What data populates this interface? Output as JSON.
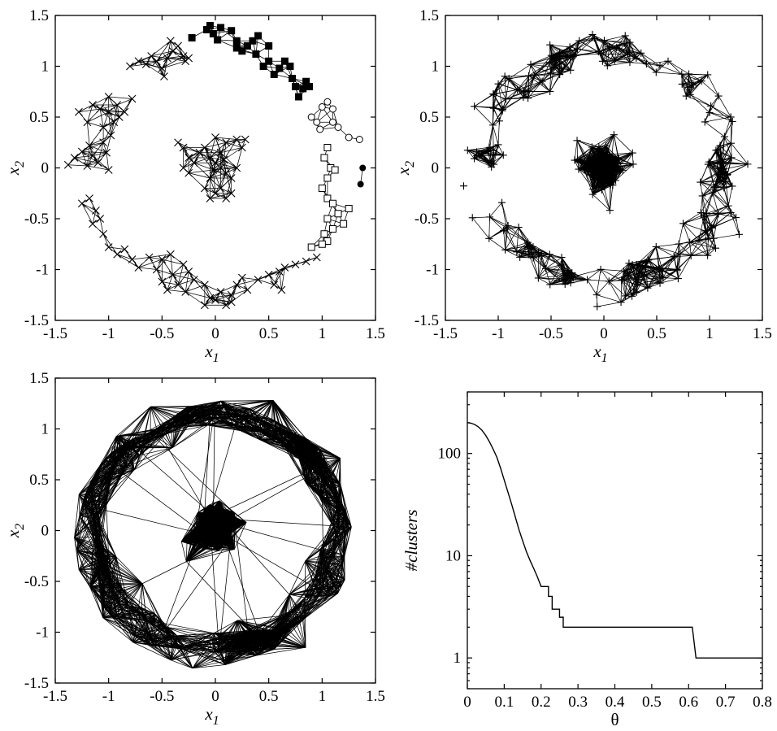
{
  "chart_data": [
    {
      "type": "scatter",
      "panel": "top-left",
      "description_of_marks": "points connected by edges; clusters marked with different symbols",
      "xlabel": "x1",
      "ylabel": "x2",
      "xlim": [
        -1.5,
        1.5
      ],
      "ylim": [
        -1.5,
        1.5
      ],
      "xticks": [
        "-1.5",
        "-1",
        "-0.5",
        "0",
        "0.5",
        "1",
        "1.5"
      ],
      "yticks": [
        "-1.5",
        "-1",
        "-0.5",
        "0",
        "0.5",
        "1",
        "1.5"
      ],
      "grid": false,
      "series": [
        {
          "marker": "cross",
          "points": [
            [
              -1.38,
              0.03
            ],
            [
              -1.32,
              0.1
            ],
            [
              -1.25,
              0.16
            ],
            [
              -1.2,
              0.02
            ],
            [
              -1.18,
              0.22
            ],
            [
              -1.15,
              0.12
            ],
            [
              -1.1,
              0.05
            ],
            [
              -1.05,
              0.25
            ],
            [
              -1.02,
              0.15
            ],
            [
              -0.98,
              0.32
            ],
            [
              -0.95,
              0.45
            ],
            [
              -1.0,
              -0.02
            ],
            [
              -1.05,
              0.4
            ],
            [
              -1.08,
              0.58
            ],
            [
              -1.0,
              0.7
            ],
            [
              -0.92,
              0.62
            ],
            [
              -0.85,
              0.55
            ],
            [
              -0.78,
              0.68
            ],
            [
              -0.9,
              0.5
            ],
            [
              -1.0,
              0.55
            ],
            [
              -1.2,
              0.45
            ],
            [
              -1.28,
              0.55
            ],
            [
              -1.15,
              0.62
            ],
            [
              -1.25,
              -0.35
            ],
            [
              -1.18,
              -0.3
            ],
            [
              -1.12,
              -0.42
            ],
            [
              -1.08,
              -0.5
            ],
            [
              -1.15,
              -0.55
            ],
            [
              -1.05,
              -0.65
            ],
            [
              -1.0,
              -0.78
            ],
            [
              -0.92,
              -0.85
            ],
            [
              -0.85,
              -0.8
            ],
            [
              -0.78,
              -0.9
            ],
            [
              -0.72,
              -0.98
            ],
            [
              -0.62,
              -0.88
            ],
            [
              -0.55,
              -1.0
            ],
            [
              -0.5,
              -1.12
            ],
            [
              -0.45,
              -1.2
            ],
            [
              -0.4,
              -1.05
            ],
            [
              -0.35,
              -1.15
            ],
            [
              -0.3,
              -0.95
            ],
            [
              -0.25,
              -1.02
            ],
            [
              -0.28,
              -1.22
            ],
            [
              -0.5,
              -0.9
            ],
            [
              -0.42,
              -0.85
            ],
            [
              -0.2,
              -1.1
            ],
            [
              -0.1,
              -1.15
            ],
            [
              -0.05,
              -1.28
            ],
            [
              0.0,
              -1.3
            ],
            [
              0.05,
              -1.22
            ],
            [
              0.1,
              -1.35
            ],
            [
              0.15,
              -1.25
            ],
            [
              0.2,
              -1.15
            ],
            [
              0.25,
              -1.08
            ],
            [
              0.15,
              -1.32
            ],
            [
              -0.1,
              -1.35
            ],
            [
              0.3,
              -1.2
            ],
            [
              0.4,
              -1.1
            ],
            [
              0.5,
              -1.05
            ],
            [
              0.55,
              -1.15
            ],
            [
              0.6,
              -1.02
            ],
            [
              0.65,
              -0.98
            ],
            [
              0.75,
              -0.95
            ],
            [
              0.85,
              -0.92
            ],
            [
              0.95,
              -0.88
            ],
            [
              0.62,
              -1.2
            ],
            [
              -0.8,
              1.0
            ],
            [
              -0.72,
              1.05
            ],
            [
              -0.65,
              1.02
            ],
            [
              -0.6,
              1.1
            ],
            [
              -0.55,
              1.05
            ],
            [
              -0.5,
              0.98
            ],
            [
              -0.45,
              1.08
            ],
            [
              -0.4,
              1.15
            ],
            [
              -0.35,
              1.2
            ],
            [
              -0.3,
              1.1
            ],
            [
              -0.28,
              1.05
            ],
            [
              -0.42,
              1.25
            ],
            [
              -0.25,
              1.08
            ],
            [
              -0.48,
              0.9
            ],
            [
              -0.35,
              0.25
            ],
            [
              -0.3,
              0.2
            ],
            [
              -0.25,
              0.1
            ],
            [
              -0.2,
              0.05
            ],
            [
              -0.15,
              0.15
            ],
            [
              -0.1,
              0.2
            ],
            [
              -0.05,
              0.1
            ],
            [
              0.0,
              0.05
            ],
            [
              0.05,
              0.0
            ],
            [
              0.1,
              -0.05
            ],
            [
              0.15,
              -0.1
            ],
            [
              0.2,
              0.0
            ],
            [
              0.25,
              0.2
            ],
            [
              0.28,
              0.28
            ],
            [
              0.2,
              0.28
            ],
            [
              0.1,
              0.25
            ],
            [
              0.0,
              0.3
            ],
            [
              -0.05,
              -0.1
            ],
            [
              -0.1,
              -0.2
            ],
            [
              -0.05,
              -0.3
            ],
            [
              0.0,
              -0.25
            ],
            [
              0.05,
              -0.2
            ],
            [
              0.15,
              -0.25
            ],
            [
              0.1,
              -0.3
            ],
            [
              -0.3,
              0.0
            ],
            [
              -0.25,
              -0.05
            ],
            [
              0.05,
              0.15
            ],
            [
              -0.02,
              -0.02
            ],
            [
              0.08,
              0.08
            ]
          ]
        },
        {
          "marker": "square-filled",
          "points": [
            [
              -0.22,
              1.28
            ],
            [
              -0.08,
              1.36
            ],
            [
              -0.05,
              1.4
            ],
            [
              -0.02,
              1.32
            ],
            [
              0.02,
              1.26
            ],
            [
              0.05,
              1.38
            ],
            [
              0.15,
              1.35
            ],
            [
              0.2,
              1.25
            ],
            [
              0.25,
              1.15
            ],
            [
              0.3,
              1.2
            ],
            [
              0.35,
              1.25
            ],
            [
              0.4,
              1.3
            ],
            [
              0.38,
              1.12
            ],
            [
              0.45,
              1.0
            ],
            [
              0.5,
              1.05
            ],
            [
              0.55,
              0.92
            ],
            [
              0.6,
              0.98
            ],
            [
              0.65,
              1.05
            ],
            [
              0.7,
              1.0
            ],
            [
              0.72,
              0.88
            ],
            [
              0.75,
              0.8
            ],
            [
              0.78,
              0.7
            ],
            [
              0.82,
              0.78
            ],
            [
              0.85,
              0.85
            ],
            [
              0.88,
              0.8
            ],
            [
              0.2,
              1.18
            ],
            [
              0.5,
              1.2
            ]
          ]
        },
        {
          "marker": "circle-open",
          "points": [
            [
              0.9,
              0.5
            ],
            [
              0.95,
              0.45
            ],
            [
              1.0,
              0.6
            ],
            [
              1.05,
              0.65
            ],
            [
              1.1,
              0.58
            ],
            [
              1.15,
              0.4
            ],
            [
              0.98,
              0.38
            ],
            [
              1.1,
              0.45
            ],
            [
              1.25,
              0.3
            ],
            [
              1.35,
              0.28
            ]
          ]
        },
        {
          "marker": "square-open",
          "points": [
            [
              1.05,
              0.2
            ],
            [
              1.02,
              0.1
            ],
            [
              1.08,
              0.0
            ],
            [
              1.12,
              -0.02
            ],
            [
              1.05,
              -0.1
            ],
            [
              1.0,
              -0.2
            ],
            [
              1.05,
              -0.3
            ],
            [
              1.1,
              -0.35
            ],
            [
              1.15,
              -0.45
            ],
            [
              1.05,
              -0.5
            ],
            [
              1.1,
              -0.6
            ],
            [
              1.2,
              -0.55
            ],
            [
              1.25,
              -0.4
            ],
            [
              1.02,
              -0.65
            ],
            [
              1.05,
              -0.72
            ],
            [
              1.0,
              -0.75
            ],
            [
              0.9,
              -0.78
            ]
          ]
        },
        {
          "marker": "circle-filled",
          "points": [
            [
              1.38,
              0.0
            ],
            [
              1.36,
              -0.16
            ]
          ]
        }
      ]
    },
    {
      "type": "scatter",
      "panel": "top-right",
      "description_of_marks": "points connected by edges",
      "xlabel": "x1",
      "ylabel": "x2",
      "xlim": [
        -1.5,
        1.5
      ],
      "ylim": [
        -1.5,
        1.5
      ],
      "xticks": [
        "-1.5",
        "-1",
        "-0.5",
        "0",
        "0.5",
        "1",
        "1.5"
      ],
      "yticks": [
        "-1.5",
        "-1",
        "-0.5",
        "0",
        "0.5",
        "1",
        "1.5"
      ],
      "grid": false,
      "series": [
        {
          "marker": "cross",
          "points": []
        }
      ]
    },
    {
      "type": "scatter",
      "panel": "bottom-left",
      "description_of_marks": "points connected by edges",
      "xlabel": "x1",
      "ylabel": "x2",
      "xlim": [
        -1.5,
        1.5
      ],
      "ylim": [
        -1.5,
        1.5
      ],
      "xticks": [
        "-1.5",
        "-1",
        "-0.5",
        "0",
        "0.5",
        "1",
        "1.5"
      ],
      "yticks": [
        "-1.5",
        "-1",
        "-0.5",
        "0",
        "0.5",
        "1",
        "1.5"
      ],
      "grid": false,
      "series": [
        {
          "marker": "none",
          "points": []
        }
      ]
    },
    {
      "type": "line",
      "panel": "bottom-right",
      "xlabel": "θ",
      "ylabel": "#clusters",
      "xlim": [
        0,
        0.8
      ],
      "ylim": [
        0.5,
        400
      ],
      "ylog": true,
      "xticks": [
        "0",
        "0.1",
        "0.2",
        "0.3",
        "0.4",
        "0.5",
        "0.6",
        "0.7",
        "0.8"
      ],
      "yticks": [
        "1",
        "10",
        "100"
      ],
      "grid": false,
      "series": [
        {
          "points": [
            [
              0.0,
              200
            ],
            [
              0.01,
              198
            ],
            [
              0.02,
              192
            ],
            [
              0.03,
              182
            ],
            [
              0.04,
              168
            ],
            [
              0.05,
              150
            ],
            [
              0.06,
              130
            ],
            [
              0.07,
              110
            ],
            [
              0.08,
              92
            ],
            [
              0.09,
              72
            ],
            [
              0.1,
              55
            ],
            [
              0.11,
              42
            ],
            [
              0.12,
              32
            ],
            [
              0.13,
              24
            ],
            [
              0.14,
              18
            ],
            [
              0.15,
              14
            ],
            [
              0.16,
              11
            ],
            [
              0.17,
              9
            ],
            [
              0.18,
              7.5
            ],
            [
              0.19,
              6.2
            ],
            [
              0.2,
              5.0
            ],
            [
              0.21,
              5.0
            ],
            [
              0.22,
              5.0
            ],
            [
              0.22,
              4.0
            ],
            [
              0.23,
              4.0
            ],
            [
              0.23,
              3.0
            ],
            [
              0.25,
              3.0
            ],
            [
              0.25,
              2.5
            ],
            [
              0.26,
              2.5
            ],
            [
              0.26,
              2.0
            ],
            [
              0.61,
              2.0
            ],
            [
              0.62,
              1.0
            ],
            [
              0.8,
              1.0
            ]
          ]
        }
      ]
    }
  ],
  "labels": {
    "x1_main": "x",
    "x1_sub": "1",
    "x2_main": "x",
    "x2_sub": "2",
    "theta": "θ",
    "clusters": "#clusters"
  }
}
